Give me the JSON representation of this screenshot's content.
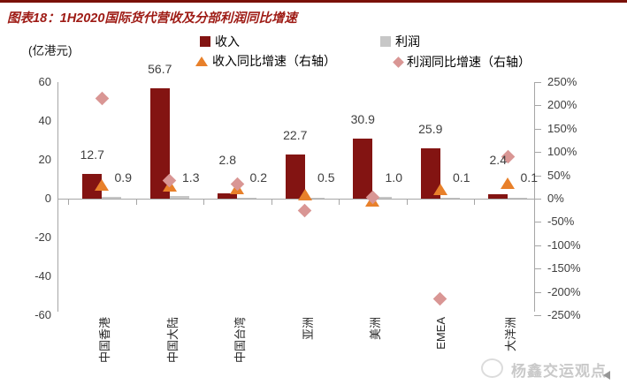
{
  "figure": {
    "title": "图表18：1H2020国际货代营收及分部利润同比增速",
    "unit_label": "(亿港元)"
  },
  "watermark": {
    "text": "杨鑫交运观点"
  },
  "colors": {
    "revenue_bar": "#831412",
    "profit_bar": "#c7c7c7",
    "revenue_growth_marker": "#e8802a",
    "profit_growth_marker": "#d99694",
    "title_text": "#9e1b15",
    "axis_line": "#a6a6a6",
    "axis_text": "#404040",
    "top_border": "#7a1008"
  },
  "chart_data": {
    "type": "bar",
    "title": "图表18：1H2020国际货代营收及分部利润同比增速",
    "ylabel_left": "(亿港元)",
    "categories": [
      "中国香港",
      "中国大陆",
      "中国台湾",
      "亚洲",
      "美洲",
      "EMEA",
      "大洋洲"
    ],
    "series": [
      {
        "name": "收入",
        "type": "bar",
        "axis": "left",
        "values": [
          12.7,
          56.7,
          2.8,
          22.7,
          30.9,
          25.9,
          2.4
        ],
        "labels": [
          "12.7",
          "56.7",
          "2.8",
          "22.7",
          "30.9",
          "25.9",
          "2.4"
        ]
      },
      {
        "name": "利润",
        "type": "bar",
        "axis": "left",
        "values": [
          0.9,
          1.3,
          0.2,
          0.5,
          1.0,
          0.1,
          0.1
        ],
        "labels": [
          "0.9",
          "1.3",
          "0.2",
          "0.5",
          "1.0",
          "0.1",
          "0.1"
        ]
      },
      {
        "name": "收入同比增速（右轴）",
        "type": "scatter",
        "marker": "triangle",
        "axis": "right",
        "values_pct": [
          30,
          28,
          22,
          10,
          -4,
          20,
          35
        ]
      },
      {
        "name": "利润同比增速（右轴）",
        "type": "scatter",
        "marker": "diamond",
        "axis": "right",
        "values_pct": [
          215,
          38,
          32,
          -25,
          3,
          -215,
          90
        ]
      }
    ],
    "left_axis": {
      "min": -60,
      "max": 60,
      "tick_step": 20,
      "ticks": [
        60,
        40,
        20,
        0,
        -20,
        -40,
        -60
      ]
    },
    "right_axis": {
      "min": -250,
      "max": 250,
      "tick_step": 50,
      "format": "percent",
      "ticks": [
        "250%",
        "200%",
        "150%",
        "100%",
        "50%",
        "0%",
        "-50%",
        "-100%",
        "-150%",
        "-200%",
        "-250%"
      ]
    },
    "legend_position": "top",
    "grid": false
  }
}
